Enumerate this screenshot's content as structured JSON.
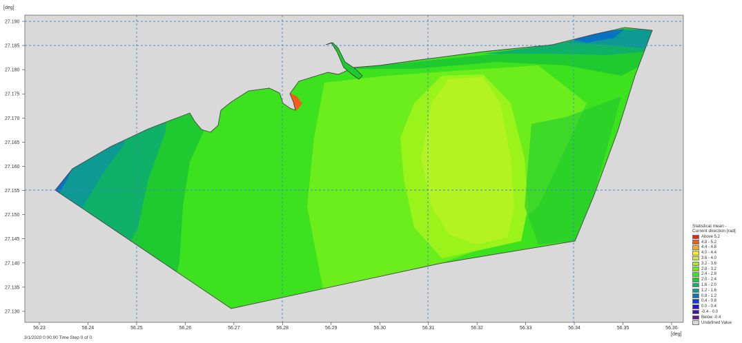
{
  "map": {
    "y_unit": "[deg]",
    "x_unit": "[deg]",
    "y_ticks": [
      "27.190",
      "27.185",
      "27.180",
      "27.175",
      "27.170",
      "27.165",
      "27.160",
      "27.155",
      "27.150",
      "27.145",
      "27.140",
      "27.135",
      "27.130"
    ],
    "x_ticks": [
      "56.23",
      "56.24",
      "56.25",
      "56.26",
      "56.27",
      "56.28",
      "56.29",
      "56.30",
      "56.31",
      "56.32",
      "56.33",
      "56.34",
      "56.35",
      "56.36"
    ],
    "background_color": "#d9d9d9",
    "grid_color": "#3d86c9"
  },
  "legend": {
    "title": "Statistical mean - Current direction [rad]",
    "items": [
      {
        "label": "Above  5.2",
        "color": "#e8201c"
      },
      {
        "label": "4.8 -  5.2",
        "color": "#f25e1a"
      },
      {
        "label": "4.4 -  4.8",
        "color": "#f7a52c"
      },
      {
        "label": "4.0 -  4.4",
        "color": "#f7e82a"
      },
      {
        "label": "3.6 -  4.0",
        "color": "#c9f02a"
      },
      {
        "label": "3.2 -  3.6",
        "color": "#9af31b"
      },
      {
        "label": "2.8 -  3.2",
        "color": "#6cee1c"
      },
      {
        "label": "2.4 -  2.8",
        "color": "#3ce21d"
      },
      {
        "label": "2.0 -  2.4",
        "color": "#1fca31"
      },
      {
        "label": "1.6 -  2.0",
        "color": "#0fb068"
      },
      {
        "label": "1.2 -  1.6",
        "color": "#0c9a93"
      },
      {
        "label": "0.8 -  1.2",
        "color": "#0a72c2"
      },
      {
        "label": "0.4 -  0.8",
        "color": "#0a3fdc"
      },
      {
        "label": "0.0 -  0.4",
        "color": "#2013c9"
      },
      {
        "label": "-0.4 -  0.0",
        "color": "#4a0fa8"
      },
      {
        "label": "Below -0.4",
        "color": "#6e1290"
      },
      {
        "label": "Undefined Value",
        "color": "#d9d9d9"
      }
    ]
  },
  "status": "3/1/2020 0:00:00   Time Step 0 of 0."
}
